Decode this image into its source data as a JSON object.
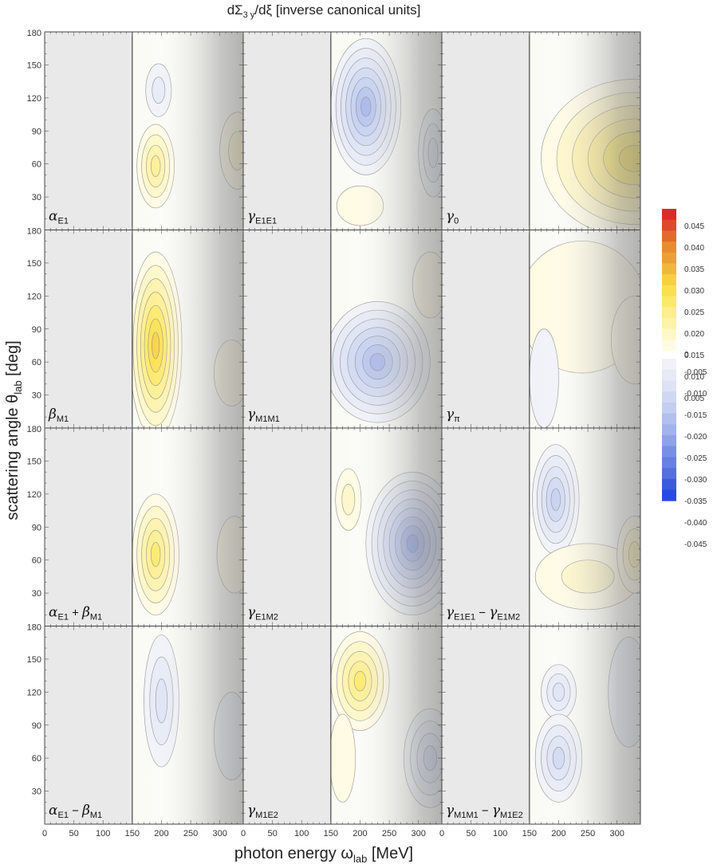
{
  "figure": {
    "title": "dΣ",
    "title_sub": "3 y",
    "title_rest": "/dξ [inverse canonical units]",
    "xlabel": "photon energy ω",
    "xlabel_sub": "lab",
    "xlabel_rest": " [MeV]",
    "ylabel": "scattering angle θ",
    "ylabel_sub": "lab",
    "ylabel_rest": " [deg]"
  },
  "chart_data": {
    "type": "heatmap",
    "layout": "4 rows x 3 columns of contour panels sharing axes",
    "x_axis": {
      "range": [
        0,
        340
      ],
      "ticks": [
        0,
        50,
        100,
        150,
        200,
        250,
        300
      ]
    },
    "y_axis": {
      "range": [
        0,
        180
      ],
      "ticks": [
        30,
        60,
        90,
        120,
        150
      ],
      "top_label": "180"
    },
    "shading": "values shown only for ω ≥ 150 MeV; region ω < 150 MeV is gray; a gray band darkens toward high ω",
    "colorbar": {
      "ticks": [
        "0.045",
        "0.040",
        "0.035",
        "0.030",
        "0.025",
        "0.020",
        "0.015",
        "0.010",
        "0.005",
        "0",
        "-0.005",
        "-0.010",
        "-0.015",
        "-0.020",
        "-0.025",
        "-0.030",
        "-0.035",
        "-0.040",
        "-0.045"
      ],
      "positive_colors": [
        "#fffbe3",
        "#fff7c8",
        "#fff2ab",
        "#ffee90",
        "#fde968",
        "#fbe04e",
        "#f7d040",
        "#f0b83a",
        "#eba035",
        "#e78d31",
        "#e36a2e",
        "#e0482d",
        "#dc2a2a"
      ],
      "negative_colors": [
        "#f0f2f8",
        "#e6eaf6",
        "#dde3f4",
        "#cfd8f2",
        "#c3cff0",
        "#b3c0ed",
        "#a2b2ea",
        "#8ea2e7",
        "#7890e4",
        "#6781e2",
        "#5470df",
        "#3c5ade",
        "#2949e3"
      ]
    },
    "panels": [
      {
        "label": "α",
        "sub": "E1",
        "blobs": [
          {
            "x": 195,
            "y": 127,
            "rx": 22,
            "ry": 24,
            "level": -2
          },
          {
            "x": 190,
            "y": 58,
            "rx": 32,
            "ry": 38,
            "level": 4
          },
          {
            "x": 330,
            "y": 72,
            "rx": 30,
            "ry": 35,
            "level": 2
          }
        ]
      },
      {
        "label": "γ",
        "sub": "E1E1",
        "blobs": [
          {
            "x": 210,
            "y": 112,
            "rx": 60,
            "ry": 62,
            "level": -7
          },
          {
            "x": 200,
            "y": 22,
            "rx": 40,
            "ry": 18,
            "level": 1
          },
          {
            "x": 325,
            "y": 70,
            "rx": 25,
            "ry": 40,
            "level": -3
          }
        ]
      },
      {
        "label": "γ",
        "sub": "0",
        "blobs": [
          {
            "x": 330,
            "y": 65,
            "rx": 160,
            "ry": 72,
            "level": 6
          }
        ]
      },
      {
        "label": "β",
        "sub": "M1",
        "blobs": [
          {
            "x": 190,
            "y": 75,
            "rx": 45,
            "ry": 85,
            "level": 7
          },
          {
            "x": 320,
            "y": 50,
            "rx": 30,
            "ry": 30,
            "level": 1
          }
        ]
      },
      {
        "label": "γ",
        "sub": "M1M1",
        "blobs": [
          {
            "x": 230,
            "y": 60,
            "rx": 90,
            "ry": 55,
            "level": -7
          },
          {
            "x": 320,
            "y": 130,
            "rx": 30,
            "ry": 30,
            "level": 1
          }
        ]
      },
      {
        "label": "γ",
        "sub": "π",
        "blobs": [
          {
            "x": 240,
            "y": 110,
            "rx": 110,
            "ry": 60,
            "level": 1
          },
          {
            "x": 330,
            "y": 80,
            "rx": 40,
            "ry": 40,
            "level": 1
          },
          {
            "x": 175,
            "y": 45,
            "rx": 25,
            "ry": 45,
            "level": -1
          }
        ]
      },
      {
        "label": "α",
        "sub": "E1",
        "label2": "β",
        "sub2": "M1",
        "op": " + ",
        "blobs": [
          {
            "x": 190,
            "y": 65,
            "rx": 40,
            "ry": 55,
            "level": 5
          },
          {
            "x": 325,
            "y": 65,
            "rx": 30,
            "ry": 35,
            "level": 1
          }
        ]
      },
      {
        "label": "γ",
        "sub": "E1M2",
        "blobs": [
          {
            "x": 290,
            "y": 75,
            "rx": 80,
            "ry": 65,
            "level": -8
          },
          {
            "x": 180,
            "y": 115,
            "rx": 22,
            "ry": 28,
            "level": 2
          }
        ]
      },
      {
        "label": "γ",
        "sub": "E1E1",
        "label2": "γ",
        "sub2": "E1M2",
        "op": " − ",
        "blobs": [
          {
            "x": 195,
            "y": 115,
            "rx": 40,
            "ry": 50,
            "level": -5
          },
          {
            "x": 250,
            "y": 45,
            "rx": 90,
            "ry": 30,
            "level": 2
          },
          {
            "x": 330,
            "y": 65,
            "rx": 30,
            "ry": 35,
            "level": 3
          }
        ]
      },
      {
        "label": "α",
        "sub": "E1",
        "label2": "β",
        "sub2": "M1",
        "op": " − ",
        "blobs": [
          {
            "x": 200,
            "y": 112,
            "rx": 30,
            "ry": 60,
            "level": -3
          },
          {
            "x": 320,
            "y": 80,
            "rx": 30,
            "ry": 40,
            "level": -1
          }
        ]
      },
      {
        "label": "γ",
        "sub": "M1E2",
        "blobs": [
          {
            "x": 200,
            "y": 130,
            "rx": 50,
            "ry": 45,
            "level": 5
          },
          {
            "x": 170,
            "y": 60,
            "rx": 22,
            "ry": 40,
            "level": 1
          },
          {
            "x": 320,
            "y": 60,
            "rx": 45,
            "ry": 45,
            "level": -4
          }
        ]
      },
      {
        "label": "γ",
        "sub": "M1M1",
        "label2": "γ",
        "sub2": "M1E2",
        "op": " − ",
        "blobs": [
          {
            "x": 200,
            "y": 120,
            "rx": 30,
            "ry": 25,
            "level": -3
          },
          {
            "x": 200,
            "y": 60,
            "rx": 40,
            "ry": 40,
            "level": -4
          },
          {
            "x": 320,
            "y": 120,
            "rx": 35,
            "ry": 50,
            "level": -1
          }
        ]
      }
    ]
  }
}
